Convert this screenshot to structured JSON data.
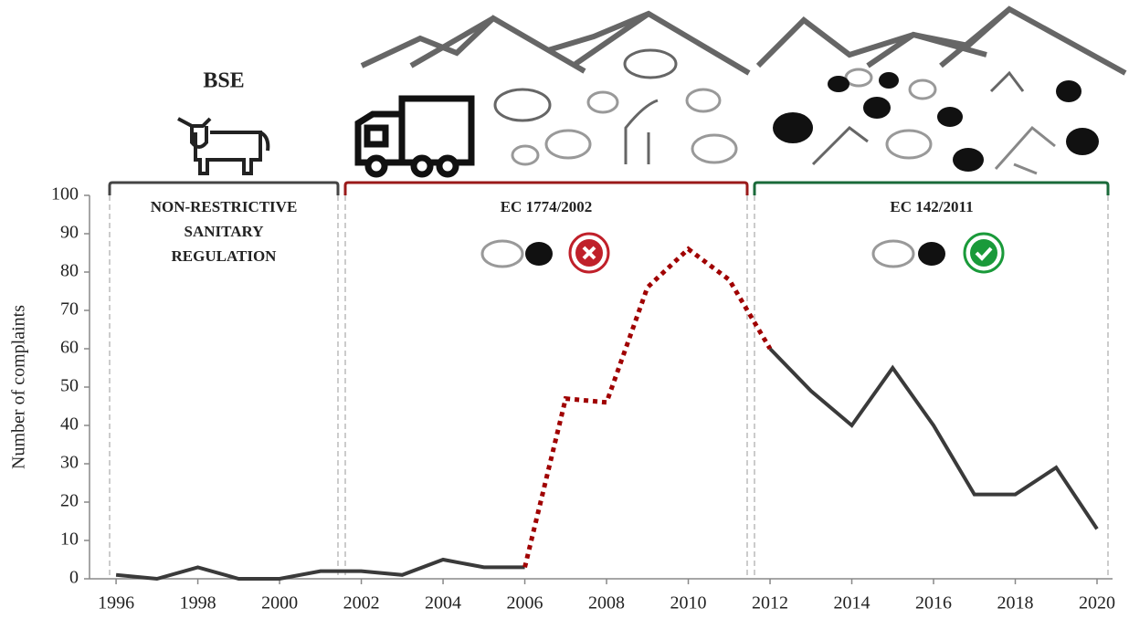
{
  "chart_data": {
    "type": "line",
    "y_label": "Number of complaints",
    "x": [
      1996,
      1997,
      1998,
      1999,
      2000,
      2001,
      2002,
      2003,
      2004,
      2005,
      2006,
      2007,
      2008,
      2009,
      2010,
      2011,
      2012,
      2013,
      2014,
      2015,
      2016,
      2017,
      2018,
      2019,
      2020
    ],
    "series": [
      {
        "color": "#3a3a3a",
        "dash": "solid",
        "values": [
          1,
          0,
          3,
          0,
          0,
          2,
          2,
          1,
          5,
          3,
          3,
          null,
          null,
          null,
          null,
          null,
          60,
          49,
          40,
          55,
          40,
          22,
          22,
          29,
          13
        ]
      },
      {
        "color": "#a00000",
        "dash": "dotted",
        "values": [
          null,
          null,
          null,
          null,
          null,
          null,
          null,
          null,
          null,
          null,
          3,
          47,
          46,
          76,
          86,
          78,
          60,
          null,
          null,
          null,
          null,
          null,
          null,
          null,
          null
        ]
      }
    ],
    "xlim": [
      1995.35,
      2020.38
    ],
    "xticks": [
      1996,
      1998,
      2000,
      2002,
      2004,
      2006,
      2008,
      2010,
      2012,
      2014,
      2016,
      2018,
      2020
    ],
    "ylim": [
      0,
      100
    ],
    "yticks": [
      0,
      10,
      20,
      30,
      40,
      50,
      60,
      70,
      80,
      90,
      100
    ],
    "annotations": {
      "bse": "BSE",
      "period_1": [
        "NON-RESTRICTIVE",
        "SANITARY",
        "REGULATION"
      ],
      "period_2": "EC 1774/2002",
      "period_3": "EC 142/2011"
    }
  }
}
